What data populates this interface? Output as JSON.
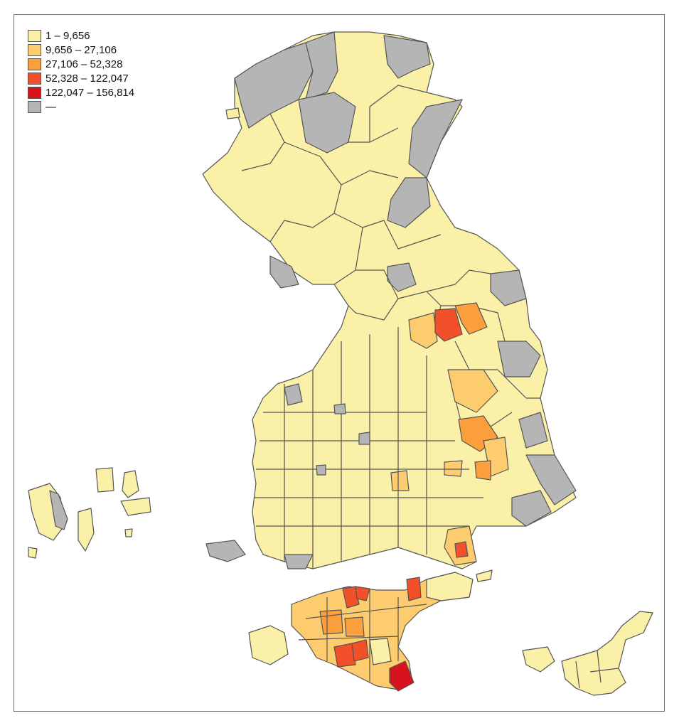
{
  "map": {
    "legend": [
      {
        "label": "1 – 9,656",
        "color": "#fbf0a8"
      },
      {
        "label": "9,656 – 27,106",
        "color": "#fdcc6e"
      },
      {
        "label": "27,106 – 52,328",
        "color": "#fb9e3c"
      },
      {
        "label": "52,328 – 122,047",
        "color": "#f1502a"
      },
      {
        "label": "122,047 – 156,814",
        "color": "#d7141e"
      },
      {
        "label": "—",
        "color": "#b5b5b5"
      }
    ]
  }
}
